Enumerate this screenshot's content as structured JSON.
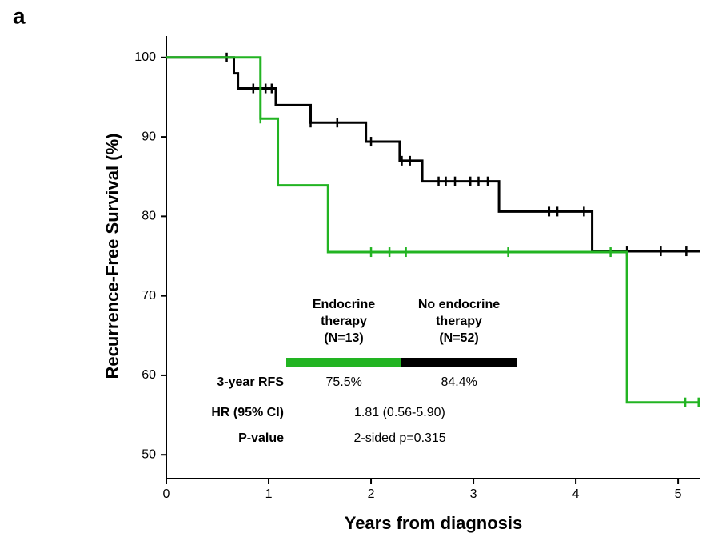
{
  "panel_label": "a",
  "chart_data": {
    "type": "km",
    "x_label": "Years from diagnosis",
    "y_label": "Recurrence-Free Survival (%)",
    "xlim": [
      0,
      5.21
    ],
    "ylim": [
      47,
      102.7
    ],
    "xticks": [
      0,
      1,
      2,
      3,
      4,
      5
    ],
    "yticks": [
      50,
      60,
      70,
      80,
      90,
      100
    ],
    "series": [
      {
        "name": "No endocrine therapy (N=52)",
        "color": "#000000",
        "x": [
          0,
          0.66,
          0.66,
          0.7,
          0.7,
          1.07,
          1.07,
          1.41,
          1.41,
          1.95,
          1.95,
          2.28,
          2.28,
          2.5,
          2.5,
          3.25,
          3.25,
          4.16,
          4.16,
          5.21
        ],
        "values": [
          100,
          100,
          98,
          98,
          96.1,
          96.1,
          94,
          94,
          91.8,
          91.8,
          89.4,
          89.4,
          87,
          87,
          84.4,
          84.4,
          80.6,
          80.6,
          75.6,
          75.6
        ],
        "censor_x": [
          0.59,
          0.85,
          0.97,
          1.03,
          1.41,
          1.67,
          2.0,
          2.3,
          2.38,
          2.66,
          2.73,
          2.82,
          2.97,
          3.05,
          3.14,
          3.74,
          3.82,
          4.08,
          4.5,
          4.83,
          5.08
        ],
        "censor_values": [
          100,
          96.1,
          96.1,
          96.1,
          91.8,
          91.8,
          89.4,
          87,
          87,
          84.4,
          84.4,
          84.4,
          84.4,
          84.4,
          84.4,
          80.6,
          80.6,
          80.6,
          75.6,
          75.6,
          75.6
        ]
      },
      {
        "name": "Endocrine therapy (N=13)",
        "color": "#22b422",
        "x": [
          0,
          0.92,
          0.92,
          1.09,
          1.09,
          1.58,
          1.58,
          4.5,
          4.5,
          5.21
        ],
        "values": [
          100,
          100,
          92.3,
          92.3,
          83.9,
          83.9,
          75.5,
          75.5,
          56.6,
          56.6
        ],
        "censor_x": [
          0.92,
          2.0,
          2.18,
          2.34,
          3.34,
          4.34,
          5.07,
          5.2
        ],
        "censor_values": [
          92.3,
          75.5,
          75.5,
          75.5,
          75.5,
          75.5,
          56.6,
          56.6
        ]
      }
    ],
    "table": {
      "rows": [
        [
          "3-year RFS",
          "75.5%",
          "84.4%"
        ],
        [
          "HR (95% CI)",
          "1.81 (0.56-5.90)"
        ],
        [
          "P-value",
          "2-sided p=0.315"
        ]
      ]
    }
  }
}
